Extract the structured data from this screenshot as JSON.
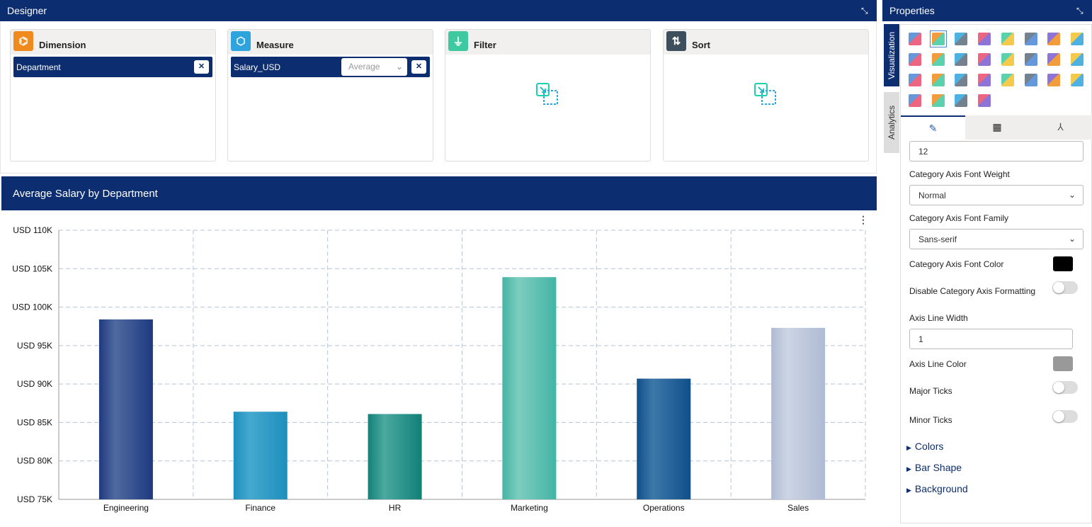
{
  "designer": {
    "title": "Designer",
    "dimension": {
      "label": "Dimension",
      "field": "Department",
      "color": "#f08a1c"
    },
    "measure": {
      "label": "Measure",
      "field": "Salary_USD",
      "aggregation": "Average",
      "color": "#2ea3dc"
    },
    "filter": {
      "label": "Filter",
      "color": "#3ec9a0"
    },
    "sort": {
      "label": "Sort",
      "color": "#3d4f5c"
    }
  },
  "chart_panel": {
    "title": "Average Salary by Department",
    "menu_icon": "more-vertical-icon"
  },
  "chart_data": {
    "type": "bar",
    "categories": [
      "Engineering",
      "Finance",
      "HR",
      "Marketing",
      "Operations",
      "Sales"
    ],
    "values": [
      98400,
      86400,
      86100,
      103900,
      90700,
      97300
    ],
    "ylim": [
      75000,
      110000
    ],
    "yticks": [
      "USD 75K",
      "USD 80K",
      "USD 85K",
      "USD 90K",
      "USD 95K",
      "USD 100K",
      "USD 105K",
      "USD 110K"
    ],
    "grid": true,
    "colors": [
      [
        "#1e3a80",
        "#4f6aa0"
      ],
      [
        "#1d8fbd",
        "#45a9cf"
      ],
      [
        "#128078",
        "#4aa9a0"
      ],
      [
        "#43b5a4",
        "#7dcdc0"
      ],
      [
        "#104f8a",
        "#3d78a8"
      ],
      [
        "#aebbd4",
        "#ccd5e4"
      ]
    ]
  },
  "properties": {
    "title": "Properties",
    "tabs": [
      "Visualization",
      "Analytics"
    ],
    "chart_icons": [
      "grid-icon",
      "line-area-chart-icon",
      "bar-chart-icon",
      "area-chart-icon",
      "stacked-bar-icon",
      "spline-icon",
      "line-markers-icon",
      "funnel-icon",
      "pie-icon",
      "donut-icon",
      "step-chart-icon",
      "polar-icon",
      "heatmap-icon",
      "arc-icon",
      "gauge-icon",
      "thermometer-icon",
      "area-range-icon",
      "radar-icon",
      "ring-icon",
      "kpi-card-icon",
      "pivot-icon",
      "candlestick-icon",
      "map-icon",
      "crosstab-icon",
      "treemap-icon",
      "sankey-icon",
      "scatter-icon",
      "histogram-icon"
    ],
    "subtabs": [
      "format-icon",
      "table-icon",
      "axis-icon"
    ],
    "font_size": "12",
    "font_weight_label": "Category Axis Font Weight",
    "font_weight": "Normal",
    "font_family_label": "Category Axis Font Family",
    "font_family": "Sans-serif",
    "font_color_label": "Category Axis Font Color",
    "font_color": "#000000",
    "disable_formatting_label": "Disable Category Axis Formatting",
    "disable_formatting": false,
    "axis_line_width_label": "Axis Line Width",
    "axis_line_width": "1",
    "axis_line_color_label": "Axis Line Color",
    "axis_line_color": "#999999",
    "major_ticks_label": "Major Ticks",
    "major_ticks": false,
    "minor_ticks_label": "Minor Ticks",
    "minor_ticks": false,
    "sections": [
      "Colors",
      "Bar Shape",
      "Background"
    ]
  }
}
